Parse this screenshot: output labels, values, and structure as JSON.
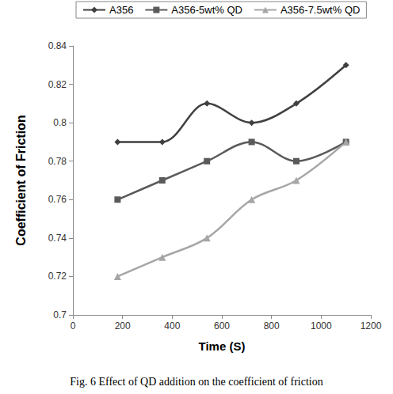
{
  "chart_data": {
    "type": "line",
    "title": "Fig. 6 Effect of QD addition on the coefficient of friction",
    "x_label": "Time (S)",
    "y_label": "Coefficient of Friction",
    "x": [
      180,
      360,
      540,
      720,
      900,
      1100
    ],
    "series": [
      {
        "name": "A356",
        "color": "#404040",
        "marker": "diamond",
        "values": [
          0.79,
          0.79,
          0.81,
          0.8,
          0.81,
          0.83
        ]
      },
      {
        "name": "A356-5wt% QD",
        "color": "#5a5a5a",
        "marker": "square",
        "values": [
          0.76,
          0.77,
          0.78,
          0.79,
          0.78,
          0.79
        ]
      },
      {
        "name": "A356-7.5wt% QD",
        "color": "#a6a6a6",
        "marker": "triangle",
        "values": [
          0.72,
          0.73,
          0.74,
          0.76,
          0.77,
          0.79
        ]
      }
    ],
    "xlim": [
      0,
      1200
    ],
    "xticks": [
      0,
      200,
      400,
      600,
      800,
      1000,
      1200
    ],
    "ylim": [
      0.7,
      0.84
    ],
    "yticks": [
      0.7,
      0.72,
      0.74,
      0.76,
      0.78,
      0.8,
      0.82,
      0.84
    ],
    "grid": false,
    "legend": "top",
    "line_style": "smooth"
  }
}
